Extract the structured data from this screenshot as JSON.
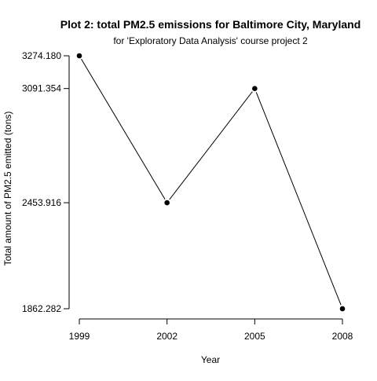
{
  "chart_data": {
    "type": "line",
    "title": "Plot 2: total PM2.5 emissions for Baltimore City, Maryland",
    "subtitle": "for 'Exploratory Data Analysis' course project 2",
    "xlabel": "Year",
    "ylabel": "Total amount of PM2.5 emitted (tons)",
    "x": [
      1999,
      2002,
      2005,
      2008
    ],
    "x_tick_labels": [
      "1999",
      "2002",
      "2005",
      "2008"
    ],
    "y_tick_values": [
      3274.18,
      3091.354,
      2453.916,
      1862.282
    ],
    "y_tick_labels": [
      "3274.180",
      "3091.354",
      "2453.916",
      "1862.282"
    ],
    "series": [
      {
        "values": [
          3274.18,
          2453.916,
          3091.354,
          1862.282
        ]
      }
    ],
    "xlim": [
      1999,
      2008
    ],
    "ylim": [
      1862.282,
      3274.18
    ],
    "grid": false,
    "legend": "none",
    "line_color": "#000000",
    "point_color": "#000000"
  }
}
